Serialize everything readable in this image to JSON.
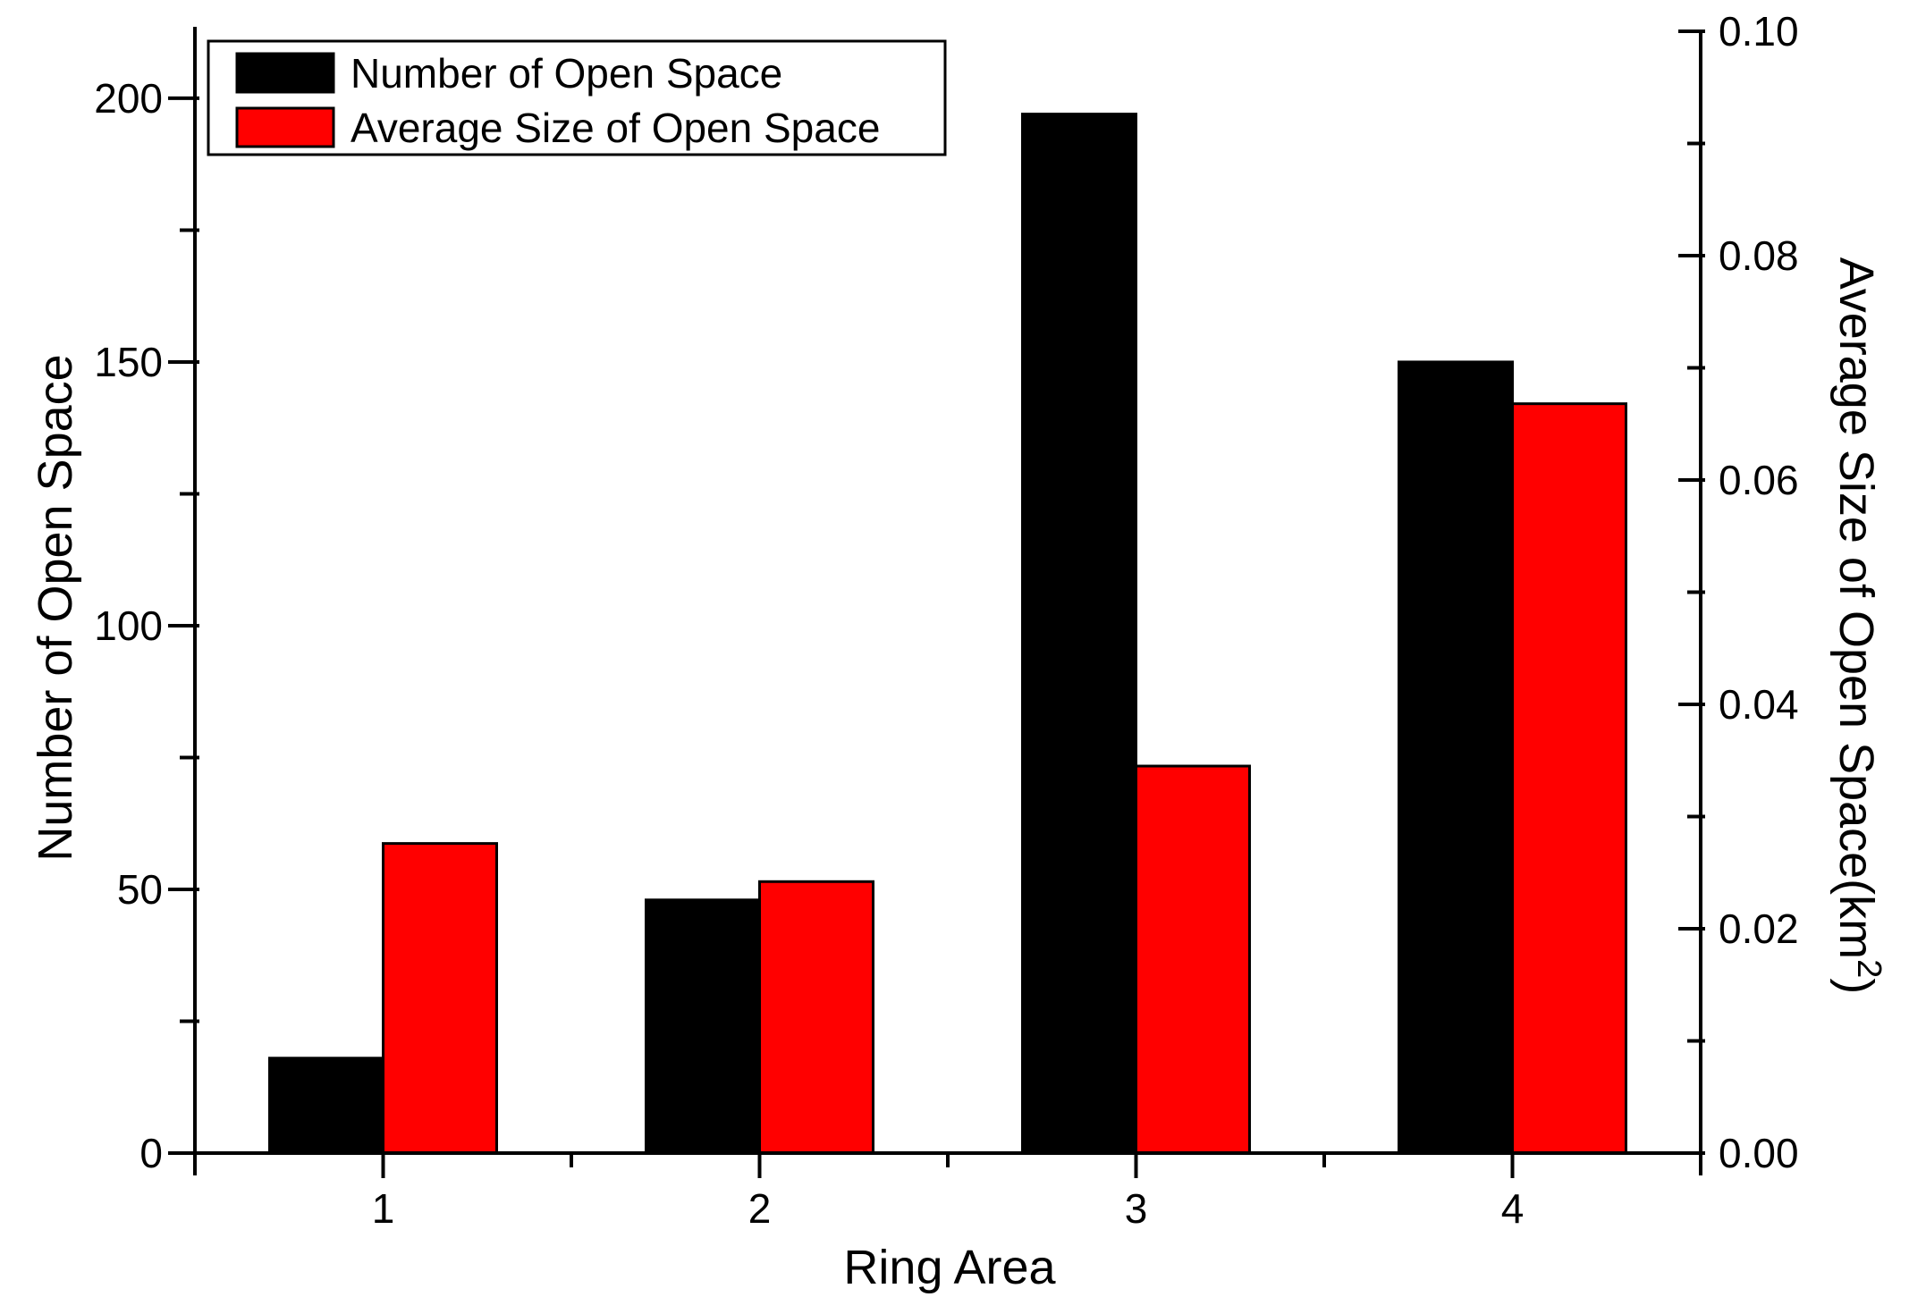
{
  "chart_data": {
    "type": "bar",
    "title": "",
    "categories": [
      "1",
      "2",
      "3",
      "4"
    ],
    "series": [
      {
        "name": "Number of Open Space",
        "axis": "left",
        "color": "#000000",
        "values": [
          18,
          48,
          197,
          150
        ]
      },
      {
        "name": "Average Size of Open Space",
        "axis": "right",
        "color": "#ff0000",
        "values": [
          0.0276,
          0.0242,
          0.0345,
          0.0668
        ]
      }
    ],
    "xlabel": "Ring Area",
    "ylabel_left": "Number of Open Space",
    "ylabel_right": "Average Size of Open Space(km²)",
    "left_ticks": [
      0,
      50,
      100,
      150,
      200
    ],
    "left_minor_ticks": [
      25,
      75,
      125,
      175
    ],
    "ylim_left": [
      0,
      212.7
    ],
    "right_ticks": [
      0.0,
      0.02,
      0.04,
      0.06,
      0.08,
      0.1
    ],
    "right_minor_ticks": [
      0.01,
      0.03,
      0.05,
      0.07,
      0.09
    ],
    "ylim_right": [
      0,
      0.1
    ],
    "right_tick_decimals": 2,
    "grid": false,
    "legend_position": "top-left"
  },
  "legend": {
    "items": [
      {
        "label": "Number of Open Space",
        "color": "#000000"
      },
      {
        "label": "Average Size of Open Space",
        "color": "#ff0000"
      }
    ]
  },
  "axes": {
    "left": {
      "title": "Number of Open Space"
    },
    "right": {
      "title_pre": "Average Size of Open Space(km",
      "title_sup": "2",
      "title_post": ")"
    },
    "bottom": {
      "title": "Ring Area"
    }
  },
  "colors": {
    "foreground": "#000000",
    "background": "#ffffff",
    "bar_edge": "#000000"
  }
}
